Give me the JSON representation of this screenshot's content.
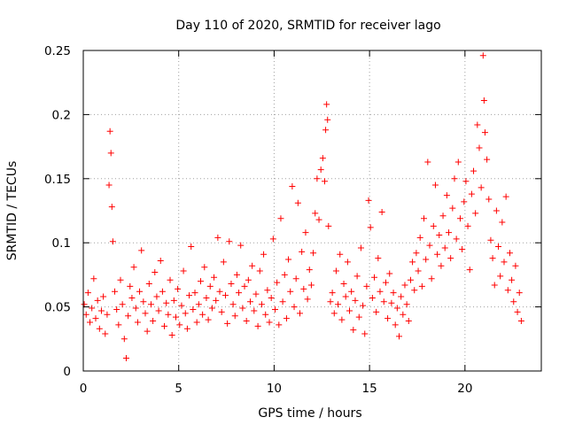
{
  "chart_data": {
    "type": "scatter",
    "title": "Day 110 of 2020, SRMTID for receiver lago",
    "xlabel": "GPS time / hours",
    "ylabel": "SRMTID / TECUs",
    "xlim": [
      0,
      24
    ],
    "ylim": [
      0,
      0.25
    ],
    "xticks": [
      0,
      5,
      10,
      15,
      20
    ],
    "yticks": [
      0,
      0.05,
      0.1,
      0.15,
      0.2,
      0.25
    ],
    "xtick_labels": [
      "0",
      "5",
      "10",
      "15",
      "20"
    ],
    "ytick_labels": [
      "0",
      "0.05",
      "0.1",
      "0.15",
      "0.2",
      "0.25"
    ],
    "grid": true,
    "marker": "+",
    "color": "#ff0000",
    "series": [
      {
        "name": "SRMTID",
        "points": [
          [
            0.05,
            0.052
          ],
          [
            0.15,
            0.044
          ],
          [
            0.25,
            0.061
          ],
          [
            0.35,
            0.038
          ],
          [
            0.45,
            0.049
          ],
          [
            0.55,
            0.072
          ],
          [
            0.65,
            0.041
          ],
          [
            0.75,
            0.055
          ],
          [
            0.85,
            0.033
          ],
          [
            0.95,
            0.047
          ],
          [
            1.05,
            0.058
          ],
          [
            1.15,
            0.029
          ],
          [
            1.25,
            0.044
          ],
          [
            1.35,
            0.145
          ],
          [
            1.4,
            0.187
          ],
          [
            1.45,
            0.17
          ],
          [
            1.5,
            0.128
          ],
          [
            1.55,
            0.101
          ],
          [
            1.65,
            0.062
          ],
          [
            1.75,
            0.048
          ],
          [
            1.85,
            0.036
          ],
          [
            1.95,
            0.071
          ],
          [
            2.05,
            0.052
          ],
          [
            2.15,
            0.025
          ],
          [
            2.25,
            0.01
          ],
          [
            2.35,
            0.043
          ],
          [
            2.45,
            0.066
          ],
          [
            2.55,
            0.057
          ],
          [
            2.65,
            0.081
          ],
          [
            2.75,
            0.049
          ],
          [
            2.85,
            0.038
          ],
          [
            2.95,
            0.062
          ],
          [
            3.05,
            0.094
          ],
          [
            3.15,
            0.054
          ],
          [
            3.25,
            0.045
          ],
          [
            3.35,
            0.031
          ],
          [
            3.45,
            0.068
          ],
          [
            3.55,
            0.052
          ],
          [
            3.65,
            0.039
          ],
          [
            3.75,
            0.077
          ],
          [
            3.85,
            0.058
          ],
          [
            3.95,
            0.047
          ],
          [
            4.05,
            0.086
          ],
          [
            4.15,
            0.062
          ],
          [
            4.25,
            0.035
          ],
          [
            4.35,
            0.053
          ],
          [
            4.45,
            0.044
          ],
          [
            4.55,
            0.071
          ],
          [
            4.65,
            0.028
          ],
          [
            4.75,
            0.055
          ],
          [
            4.85,
            0.042
          ],
          [
            4.95,
            0.064
          ],
          [
            5.05,
            0.036
          ],
          [
            5.15,
            0.051
          ],
          [
            5.25,
            0.078
          ],
          [
            5.35,
            0.045
          ],
          [
            5.45,
            0.033
          ],
          [
            5.55,
            0.059
          ],
          [
            5.65,
            0.097
          ],
          [
            5.75,
            0.048
          ],
          [
            5.85,
            0.061
          ],
          [
            5.95,
            0.038
          ],
          [
            6.05,
            0.052
          ],
          [
            6.15,
            0.07
          ],
          [
            6.25,
            0.044
          ],
          [
            6.35,
            0.081
          ],
          [
            6.45,
            0.057
          ],
          [
            6.55,
            0.04
          ],
          [
            6.65,
            0.066
          ],
          [
            6.75,
            0.049
          ],
          [
            6.85,
            0.073
          ],
          [
            6.95,
            0.055
          ],
          [
            7.05,
            0.104
          ],
          [
            7.15,
            0.062
          ],
          [
            7.25,
            0.046
          ],
          [
            7.35,
            0.085
          ],
          [
            7.45,
            0.059
          ],
          [
            7.55,
            0.037
          ],
          [
            7.65,
            0.101
          ],
          [
            7.75,
            0.068
          ],
          [
            7.85,
            0.052
          ],
          [
            7.95,
            0.043
          ],
          [
            8.05,
            0.075
          ],
          [
            8.15,
            0.061
          ],
          [
            8.25,
            0.098
          ],
          [
            8.35,
            0.049
          ],
          [
            8.45,
            0.066
          ],
          [
            8.55,
            0.039
          ],
          [
            8.65,
            0.071
          ],
          [
            8.75,
            0.054
          ],
          [
            8.85,
            0.082
          ],
          [
            8.95,
            0.047
          ],
          [
            9.05,
            0.06
          ],
          [
            9.15,
            0.035
          ],
          [
            9.25,
            0.078
          ],
          [
            9.35,
            0.052
          ],
          [
            9.45,
            0.091
          ],
          [
            9.55,
            0.044
          ],
          [
            9.65,
            0.063
          ],
          [
            9.75,
            0.038
          ],
          [
            9.85,
            0.057
          ],
          [
            9.95,
            0.103
          ],
          [
            10.05,
            0.048
          ],
          [
            10.15,
            0.069
          ],
          [
            10.25,
            0.036
          ],
          [
            10.35,
            0.119
          ],
          [
            10.45,
            0.054
          ],
          [
            10.55,
            0.075
          ],
          [
            10.65,
            0.041
          ],
          [
            10.75,
            0.087
          ],
          [
            10.85,
            0.062
          ],
          [
            10.95,
            0.144
          ],
          [
            11.05,
            0.05
          ],
          [
            11.15,
            0.072
          ],
          [
            11.25,
            0.131
          ],
          [
            11.35,
            0.045
          ],
          [
            11.45,
            0.093
          ],
          [
            11.55,
            0.064
          ],
          [
            11.65,
            0.108
          ],
          [
            11.75,
            0.056
          ],
          [
            11.85,
            0.079
          ],
          [
            11.95,
            0.067
          ],
          [
            12.05,
            0.092
          ],
          [
            12.15,
            0.123
          ],
          [
            12.25,
            0.15
          ],
          [
            12.35,
            0.118
          ],
          [
            12.45,
            0.157
          ],
          [
            12.55,
            0.166
          ],
          [
            12.65,
            0.148
          ],
          [
            12.7,
            0.188
          ],
          [
            12.75,
            0.208
          ],
          [
            12.8,
            0.196
          ],
          [
            12.85,
            0.113
          ],
          [
            12.95,
            0.054
          ],
          [
            13.05,
            0.061
          ],
          [
            13.15,
            0.045
          ],
          [
            13.25,
            0.078
          ],
          [
            13.35,
            0.052
          ],
          [
            13.45,
            0.091
          ],
          [
            13.55,
            0.04
          ],
          [
            13.65,
            0.068
          ],
          [
            13.75,
            0.058
          ],
          [
            13.85,
            0.085
          ],
          [
            13.95,
            0.047
          ],
          [
            14.05,
            0.062
          ],
          [
            14.15,
            0.032
          ],
          [
            14.25,
            0.055
          ],
          [
            14.35,
            0.074
          ],
          [
            14.45,
            0.042
          ],
          [
            14.55,
            0.096
          ],
          [
            14.65,
            0.051
          ],
          [
            14.75,
            0.029
          ],
          [
            14.85,
            0.066
          ],
          [
            14.95,
            0.133
          ],
          [
            15.05,
            0.112
          ],
          [
            15.15,
            0.057
          ],
          [
            15.25,
            0.073
          ],
          [
            15.35,
            0.046
          ],
          [
            15.45,
            0.088
          ],
          [
            15.55,
            0.062
          ],
          [
            15.65,
            0.124
          ],
          [
            15.75,
            0.054
          ],
          [
            15.85,
            0.069
          ],
          [
            15.95,
            0.041
          ],
          [
            16.05,
            0.076
          ],
          [
            16.15,
            0.053
          ],
          [
            16.25,
            0.061
          ],
          [
            16.35,
            0.036
          ],
          [
            16.45,
            0.049
          ],
          [
            16.55,
            0.027
          ],
          [
            16.65,
            0.058
          ],
          [
            16.75,
            0.044
          ],
          [
            16.85,
            0.067
          ],
          [
            16.95,
            0.052
          ],
          [
            17.05,
            0.039
          ],
          [
            17.15,
            0.071
          ],
          [
            17.25,
            0.085
          ],
          [
            17.35,
            0.063
          ],
          [
            17.45,
            0.092
          ],
          [
            17.55,
            0.078
          ],
          [
            17.65,
            0.104
          ],
          [
            17.75,
            0.066
          ],
          [
            17.85,
            0.119
          ],
          [
            17.95,
            0.087
          ],
          [
            18.05,
            0.163
          ],
          [
            18.15,
            0.098
          ],
          [
            18.25,
            0.072
          ],
          [
            18.35,
            0.113
          ],
          [
            18.45,
            0.145
          ],
          [
            18.55,
            0.091
          ],
          [
            18.65,
            0.106
          ],
          [
            18.75,
            0.082
          ],
          [
            18.85,
            0.121
          ],
          [
            18.95,
            0.096
          ],
          [
            19.05,
            0.137
          ],
          [
            19.15,
            0.108
          ],
          [
            19.25,
            0.088
          ],
          [
            19.35,
            0.127
          ],
          [
            19.45,
            0.15
          ],
          [
            19.55,
            0.103
          ],
          [
            19.65,
            0.163
          ],
          [
            19.75,
            0.119
          ],
          [
            19.85,
            0.095
          ],
          [
            19.95,
            0.132
          ],
          [
            20.05,
            0.148
          ],
          [
            20.15,
            0.113
          ],
          [
            20.25,
            0.079
          ],
          [
            20.35,
            0.138
          ],
          [
            20.45,
            0.156
          ],
          [
            20.55,
            0.123
          ],
          [
            20.65,
            0.192
          ],
          [
            20.75,
            0.174
          ],
          [
            20.85,
            0.143
          ],
          [
            20.95,
            0.246
          ],
          [
            21.0,
            0.211
          ],
          [
            21.05,
            0.186
          ],
          [
            21.15,
            0.165
          ],
          [
            21.25,
            0.134
          ],
          [
            21.35,
            0.102
          ],
          [
            21.45,
            0.088
          ],
          [
            21.55,
            0.067
          ],
          [
            21.65,
            0.125
          ],
          [
            21.75,
            0.097
          ],
          [
            21.85,
            0.074
          ],
          [
            21.95,
            0.116
          ],
          [
            22.05,
            0.085
          ],
          [
            22.15,
            0.136
          ],
          [
            22.25,
            0.063
          ],
          [
            22.35,
            0.092
          ],
          [
            22.45,
            0.071
          ],
          [
            22.55,
            0.054
          ],
          [
            22.65,
            0.082
          ],
          [
            22.75,
            0.046
          ],
          [
            22.85,
            0.061
          ],
          [
            22.95,
            0.039
          ]
        ]
      }
    ]
  }
}
